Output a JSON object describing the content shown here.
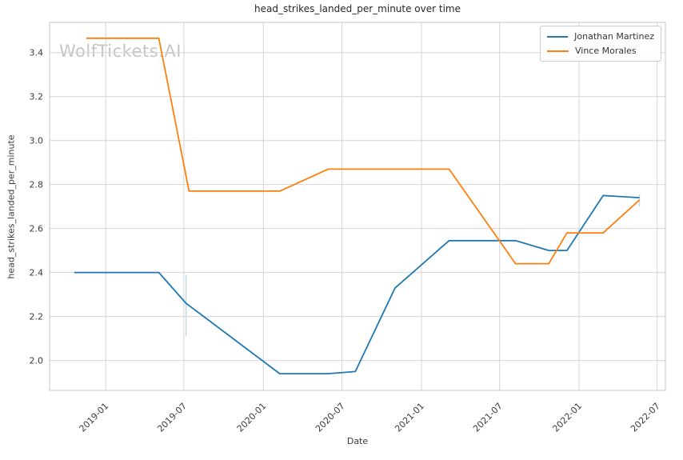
{
  "watermark": "WolfTickets.AI",
  "colors": {
    "blue": "#1f77b4",
    "orange": "#ff7f0e",
    "grid": "#d4d4d4",
    "spine": "#c6c6c6",
    "text": "#3b3b3b",
    "title_text": "#262626",
    "watermark": "#c5c5c5",
    "range_marker": "#bcd8ee"
  },
  "chart_data": {
    "type": "line",
    "title": "head_strikes_landed_per_minute over time",
    "xlabel": "Date",
    "ylabel": "head_strikes_landed_per_minute",
    "grid": true,
    "legend_position": "upper right",
    "xlim": [
      "2018-08-24",
      "2022-07-20"
    ],
    "ylim": [
      1.864,
      3.537
    ],
    "x_ticks": [
      "2019-01",
      "2019-07",
      "2020-01",
      "2020-07",
      "2021-01",
      "2021-07",
      "2022-01",
      "2022-07"
    ],
    "y_ticks": [
      3.4,
      3.2,
      3.0,
      2.8,
      2.6,
      2.4,
      2.2,
      2.0
    ],
    "series": [
      {
        "name": "Jonathan Martinez",
        "color": "#1f77b4",
        "points": [
          [
            "2018-10-20",
            2.4
          ],
          [
            "2019-05-04",
            2.4
          ],
          [
            "2019-07-06",
            2.26
          ],
          [
            "2020-02-08",
            1.94
          ],
          [
            "2020-05-30",
            1.94
          ],
          [
            "2020-08-01",
            1.95
          ],
          [
            "2020-11-01",
            2.33
          ],
          [
            "2021-03-06",
            2.545
          ],
          [
            "2021-08-07",
            2.545
          ],
          [
            "2021-10-23",
            2.5
          ],
          [
            "2021-12-04",
            2.5
          ],
          [
            "2022-02-26",
            2.75
          ],
          [
            "2022-05-21",
            2.74
          ]
        ]
      },
      {
        "name": "Vince Morales",
        "color": "#ff7f0e",
        "points": [
          [
            "2018-11-17",
            3.465
          ],
          [
            "2019-05-04",
            3.465
          ],
          [
            "2019-07-13",
            2.77
          ],
          [
            "2020-02-08",
            2.77
          ],
          [
            "2020-05-30",
            2.87
          ],
          [
            "2021-03-06",
            2.87
          ],
          [
            "2021-08-07",
            2.44
          ],
          [
            "2021-10-23",
            2.44
          ],
          [
            "2021-12-04",
            2.58
          ],
          [
            "2022-02-26",
            2.58
          ],
          [
            "2022-05-21",
            2.73
          ]
        ]
      }
    ],
    "range_markers": [
      {
        "date": "2019-07-06",
        "from": 2.39,
        "to": 2.11,
        "color": "#bcd8ee"
      },
      {
        "date": "2022-05-21",
        "from": 2.755,
        "to": 2.7,
        "color": "#bcd8ee"
      }
    ]
  }
}
